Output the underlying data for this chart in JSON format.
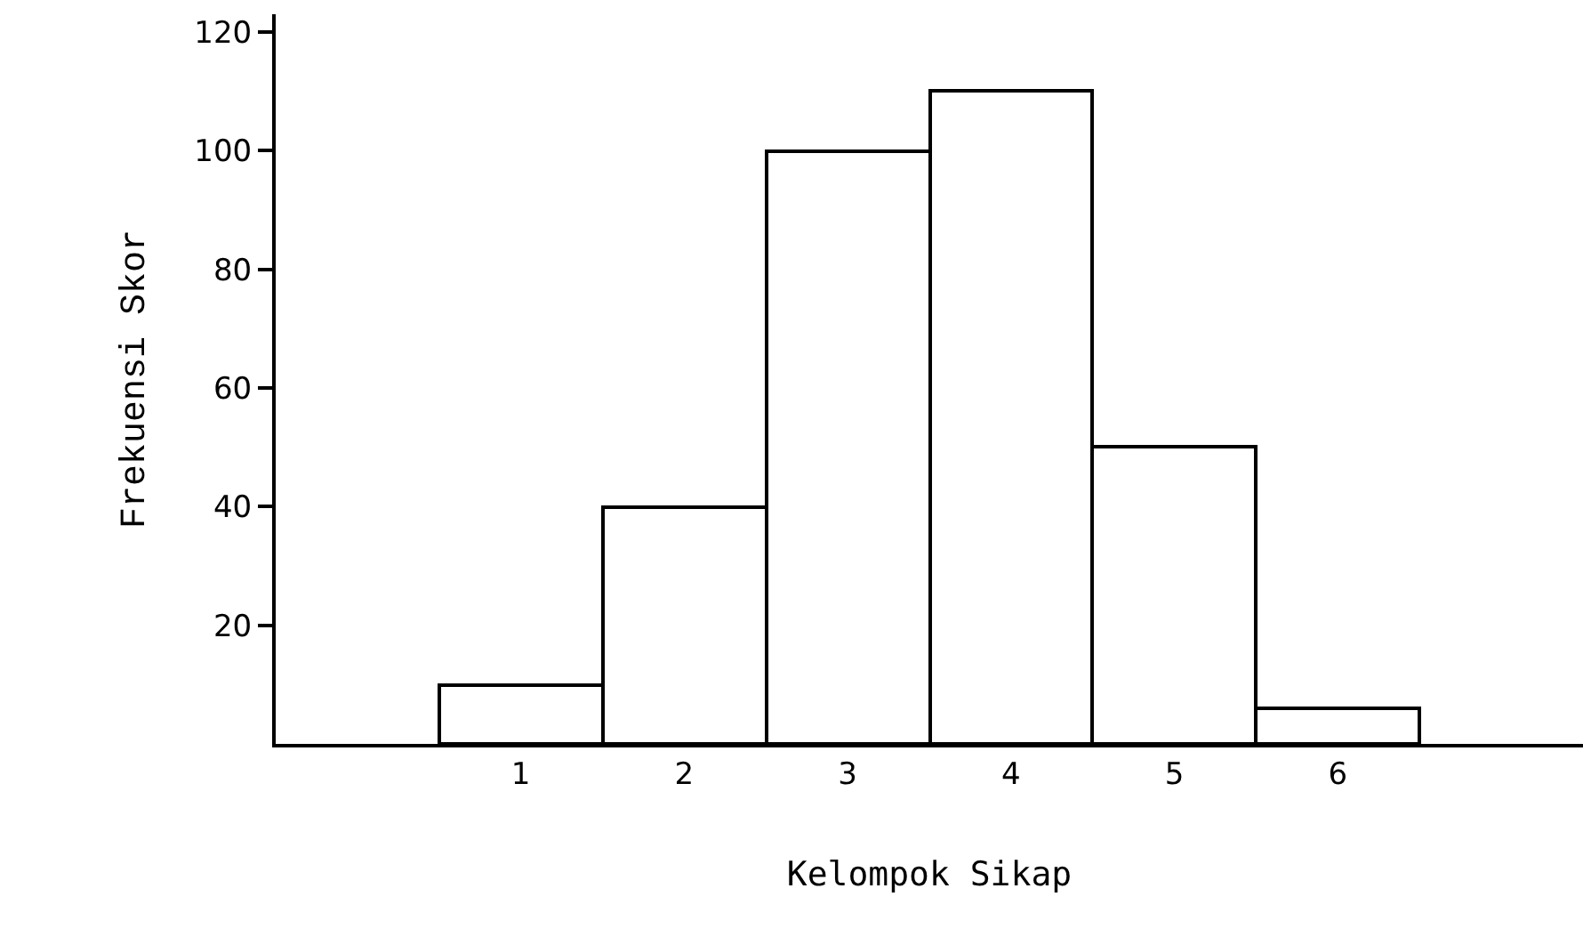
{
  "chart_data": {
    "type": "bar",
    "xlabel": "Kelompok Sikap",
    "ylabel": "Frekuensi Skor",
    "categories": [
      null,
      "1",
      "2",
      "3",
      "4",
      "5",
      "6",
      null
    ],
    "values": [
      null,
      10,
      40,
      100,
      110,
      50,
      6,
      null
    ],
    "color": "#ffffff",
    "ylim": [
      0,
      123
    ],
    "yticks": [
      20,
      40,
      60,
      80,
      100,
      120
    ],
    "grid": false,
    "legend": false
  }
}
